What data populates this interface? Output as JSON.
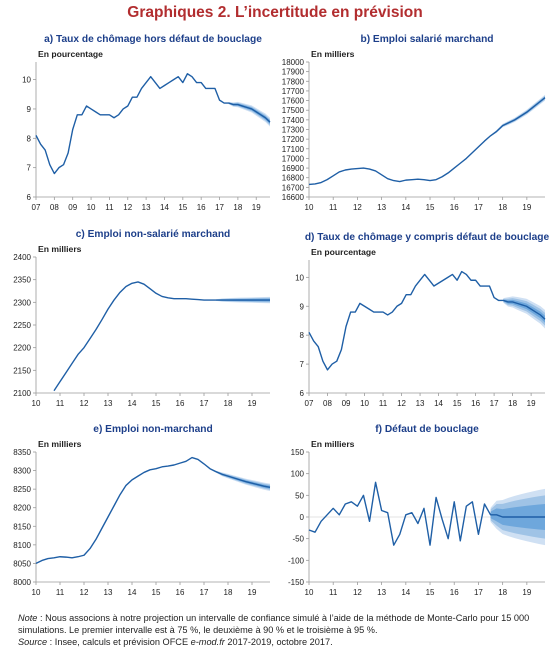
{
  "page": {
    "title": "Graphiques 2. L’incertitude en prévision",
    "note_label": "Note",
    "note_sep": " : ",
    "note_text": "Nous associons à notre projection un intervalle de confiance simulé à l’aide de la méthode de Monte-Carlo pour 15 000 simulations. Le premier intervalle est à 75 %, le deuxième à 90 % et le troisième à 95 %.",
    "source_label": "Source",
    "source_sep": " : ",
    "source_text_before": "Insee, calculs et prévision OFCE ",
    "source_text_italic": "e-mod.fr",
    "source_text_after": " 2017-2019, octobre 2017."
  },
  "colors": {
    "title": "#b22d2f",
    "panel_title": "#1d3f8a",
    "line": "#1f5fa6",
    "band95": "#cfe0f3",
    "band90": "#9fc3e6",
    "band75": "#6ea7dc",
    "axis": "#9a9a9a"
  },
  "chart_data": [
    {
      "id": "a",
      "type": "line",
      "title": "a) Taux de chômage hors défaut de bouclage",
      "unit": "En pourcentage",
      "x_start": 2007.0,
      "x_end": 2019.75,
      "xticks": [
        "07",
        "08",
        "09",
        "10",
        "11",
        "12",
        "13",
        "14",
        "15",
        "16",
        "17",
        "18",
        "19"
      ],
      "ylim": [
        6,
        10.6
      ],
      "yticks": [
        6,
        7,
        8,
        9,
        10
      ],
      "forecast_start": 2017.5,
      "bands": {
        "w75": 0.06,
        "w90": 0.1,
        "w95": 0.15
      },
      "x": [
        2007.0,
        2007.25,
        2007.5,
        2007.75,
        2008.0,
        2008.25,
        2008.5,
        2008.75,
        2009.0,
        2009.25,
        2009.5,
        2009.75,
        2010.0,
        2010.25,
        2010.5,
        2010.75,
        2011.0,
        2011.25,
        2011.5,
        2011.75,
        2012.0,
        2012.25,
        2012.5,
        2012.75,
        2013.0,
        2013.25,
        2013.5,
        2013.75,
        2014.0,
        2014.25,
        2014.5,
        2014.75,
        2015.0,
        2015.25,
        2015.5,
        2015.75,
        2016.0,
        2016.25,
        2016.5,
        2016.75,
        2017.0,
        2017.25,
        2017.5,
        2017.75,
        2018.0,
        2018.25,
        2018.5,
        2018.75,
        2019.0,
        2019.25,
        2019.5,
        2019.75
      ],
      "y": [
        8.1,
        7.8,
        7.6,
        7.1,
        6.8,
        7.0,
        7.1,
        7.5,
        8.3,
        8.8,
        8.8,
        9.1,
        9.0,
        8.9,
        8.8,
        8.8,
        8.8,
        8.7,
        8.8,
        9.0,
        9.1,
        9.4,
        9.4,
        9.7,
        9.9,
        10.1,
        9.9,
        9.7,
        9.8,
        9.9,
        10.0,
        10.1,
        9.9,
        10.2,
        10.1,
        9.9,
        9.9,
        9.7,
        9.7,
        9.7,
        9.3,
        9.2,
        9.2,
        9.15,
        9.15,
        9.1,
        9.05,
        9.0,
        8.9,
        8.8,
        8.7,
        8.55
      ]
    },
    {
      "id": "b",
      "type": "line",
      "title": "b) Emploi salarié marchand",
      "unit": "En milliers",
      "x_start": 2010.0,
      "x_end": 2019.75,
      "xticks": [
        "10",
        "11",
        "12",
        "13",
        "14",
        "15",
        "16",
        "17",
        "18",
        "19"
      ],
      "ylim": [
        16600,
        18000
      ],
      "yticks": [
        16600,
        16700,
        16800,
        16900,
        17000,
        17100,
        17200,
        17300,
        17400,
        17500,
        17600,
        17700,
        17800,
        17900,
        18000
      ],
      "forecast_start": 2017.5,
      "bands": {
        "w75": 10,
        "w90": 20,
        "w95": 30
      },
      "x": [
        2010.0,
        2010.25,
        2010.5,
        2010.75,
        2011.0,
        2011.25,
        2011.5,
        2011.75,
        2012.0,
        2012.25,
        2012.5,
        2012.75,
        2013.0,
        2013.25,
        2013.5,
        2013.75,
        2014.0,
        2014.25,
        2014.5,
        2014.75,
        2015.0,
        2015.25,
        2015.5,
        2015.75,
        2016.0,
        2016.25,
        2016.5,
        2016.75,
        2017.0,
        2017.25,
        2017.5,
        2017.75,
        2018.0,
        2018.25,
        2018.5,
        2018.75,
        2019.0,
        2019.25,
        2019.5,
        2019.75
      ],
      "y": [
        16730,
        16735,
        16750,
        16780,
        16820,
        16860,
        16880,
        16890,
        16895,
        16900,
        16890,
        16870,
        16830,
        16790,
        16770,
        16760,
        16775,
        16780,
        16785,
        16780,
        16770,
        16780,
        16810,
        16850,
        16900,
        16950,
        17000,
        17060,
        17120,
        17180,
        17235,
        17280,
        17340,
        17370,
        17400,
        17440,
        17480,
        17530,
        17580,
        17630
      ]
    },
    {
      "id": "c",
      "type": "line",
      "title": "c) Emploi non-salarié marchand",
      "unit": "En milliers",
      "x_start": 2010.0,
      "x_end": 2019.75,
      "xticks": [
        "10",
        "11",
        "12",
        "13",
        "14",
        "15",
        "16",
        "17",
        "18",
        "19"
      ],
      "ylim": [
        2100,
        2400
      ],
      "yticks": [
        2100,
        2150,
        2200,
        2250,
        2300,
        2350,
        2400
      ],
      "forecast_start": 2017.5,
      "bands": {
        "w75": 3,
        "w90": 5,
        "w95": 7
      },
      "x": [
        2010.75,
        2011.0,
        2011.25,
        2011.5,
        2011.75,
        2012.0,
        2012.25,
        2012.5,
        2012.75,
        2013.0,
        2013.25,
        2013.5,
        2013.75,
        2014.0,
        2014.25,
        2014.5,
        2014.75,
        2015.0,
        2015.25,
        2015.5,
        2015.75,
        2016.0,
        2016.25,
        2016.5,
        2016.75,
        2017.0,
        2017.25,
        2017.5,
        2017.75,
        2018.0,
        2018.25,
        2018.5,
        2018.75,
        2019.0,
        2019.25,
        2019.5,
        2019.75
      ],
      "y": [
        2105,
        2125,
        2145,
        2165,
        2185,
        2200,
        2220,
        2240,
        2262,
        2285,
        2305,
        2322,
        2335,
        2342,
        2345,
        2340,
        2330,
        2320,
        2313,
        2310,
        2308,
        2308,
        2308,
        2307,
        2306,
        2305,
        2305,
        2305,
        2305,
        2305,
        2305,
        2305,
        2305,
        2305,
        2305,
        2305,
        2305
      ]
    },
    {
      "id": "d",
      "type": "line",
      "title": "d) Taux de chômage y compris défaut de bouclage",
      "unit": "En pourcentage",
      "x_start": 2007.0,
      "x_end": 2019.75,
      "xticks": [
        "07",
        "08",
        "09",
        "10",
        "11",
        "12",
        "13",
        "14",
        "15",
        "16",
        "17",
        "18",
        "19"
      ],
      "ylim": [
        6,
        10.6
      ],
      "yticks": [
        6,
        7,
        8,
        9,
        10
      ],
      "forecast_start": 2017.5,
      "bands": {
        "w75": 0.12,
        "w90": 0.22,
        "w95": 0.32
      },
      "x": [
        2007.0,
        2007.25,
        2007.5,
        2007.75,
        2008.0,
        2008.25,
        2008.5,
        2008.75,
        2009.0,
        2009.25,
        2009.5,
        2009.75,
        2010.0,
        2010.25,
        2010.5,
        2010.75,
        2011.0,
        2011.25,
        2011.5,
        2011.75,
        2012.0,
        2012.25,
        2012.5,
        2012.75,
        2013.0,
        2013.25,
        2013.5,
        2013.75,
        2014.0,
        2014.25,
        2014.5,
        2014.75,
        2015.0,
        2015.25,
        2015.5,
        2015.75,
        2016.0,
        2016.25,
        2016.5,
        2016.75,
        2017.0,
        2017.25,
        2017.5,
        2017.75,
        2018.0,
        2018.25,
        2018.5,
        2018.75,
        2019.0,
        2019.25,
        2019.5,
        2019.75
      ],
      "y": [
        8.1,
        7.8,
        7.6,
        7.1,
        6.8,
        7.0,
        7.1,
        7.5,
        8.3,
        8.8,
        8.8,
        9.1,
        9.0,
        8.9,
        8.8,
        8.8,
        8.8,
        8.7,
        8.8,
        9.0,
        9.1,
        9.4,
        9.4,
        9.7,
        9.9,
        10.1,
        9.9,
        9.7,
        9.8,
        9.9,
        10.0,
        10.1,
        9.9,
        10.2,
        10.1,
        9.9,
        9.9,
        9.7,
        9.7,
        9.7,
        9.3,
        9.2,
        9.2,
        9.15,
        9.15,
        9.1,
        9.05,
        9.0,
        8.9,
        8.8,
        8.7,
        8.55
      ]
    },
    {
      "id": "e",
      "type": "line",
      "title": "e) Emploi non-marchand",
      "unit": "En milliers",
      "x_start": 2010.0,
      "x_end": 2019.75,
      "xticks": [
        "10",
        "11",
        "12",
        "13",
        "14",
        "15",
        "16",
        "17",
        "18",
        "19"
      ],
      "ylim": [
        8000,
        8350
      ],
      "yticks": [
        8000,
        8050,
        8100,
        8150,
        8200,
        8250,
        8300,
        8350
      ],
      "forecast_start": 2017.5,
      "bands": {
        "w75": 4,
        "w90": 7,
        "w95": 10
      },
      "x": [
        2010.0,
        2010.25,
        2010.5,
        2010.75,
        2011.0,
        2011.25,
        2011.5,
        2011.75,
        2012.0,
        2012.25,
        2012.5,
        2012.75,
        2013.0,
        2013.25,
        2013.5,
        2013.75,
        2014.0,
        2014.25,
        2014.5,
        2014.75,
        2015.0,
        2015.25,
        2015.5,
        2015.75,
        2016.0,
        2016.25,
        2016.5,
        2016.75,
        2017.0,
        2017.25,
        2017.5,
        2017.75,
        2018.0,
        2018.25,
        2018.5,
        2018.75,
        2019.0,
        2019.25,
        2019.5,
        2019.75
      ],
      "y": [
        8050,
        8058,
        8063,
        8065,
        8068,
        8067,
        8065,
        8068,
        8072,
        8090,
        8115,
        8145,
        8175,
        8205,
        8235,
        8260,
        8275,
        8285,
        8295,
        8302,
        8305,
        8310,
        8312,
        8315,
        8320,
        8325,
        8335,
        8330,
        8318,
        8305,
        8297,
        8290,
        8285,
        8280,
        8275,
        8270,
        8266,
        8262,
        8258,
        8255
      ]
    },
    {
      "id": "f",
      "type": "line",
      "title": "f) Défaut de bouclage",
      "unit": "En milliers",
      "x_start": 2010.0,
      "x_end": 2019.75,
      "xticks": [
        "10",
        "11",
        "12",
        "13",
        "14",
        "15",
        "16",
        "17",
        "18",
        "19"
      ],
      "ylim": [
        -150,
        150
      ],
      "yticks": [
        -150,
        -100,
        -50,
        0,
        50,
        100,
        150
      ],
      "forecast_start": 2017.5,
      "bands": {
        "w75": 30,
        "w90": 50,
        "w95": 65
      },
      "x": [
        2010.0,
        2010.25,
        2010.5,
        2010.75,
        2011.0,
        2011.25,
        2011.5,
        2011.75,
        2012.0,
        2012.25,
        2012.5,
        2012.75,
        2013.0,
        2013.25,
        2013.5,
        2013.75,
        2014.0,
        2014.25,
        2014.5,
        2014.75,
        2015.0,
        2015.25,
        2015.5,
        2015.75,
        2016.0,
        2016.25,
        2016.5,
        2016.75,
        2017.0,
        2017.25,
        2017.5,
        2017.75,
        2018.0,
        2018.25,
        2018.5,
        2018.75,
        2019.0,
        2019.25,
        2019.5,
        2019.75
      ],
      "y": [
        -30,
        -35,
        -10,
        5,
        20,
        5,
        30,
        35,
        25,
        50,
        -10,
        80,
        15,
        10,
        -65,
        -40,
        5,
        10,
        -15,
        20,
        -65,
        45,
        -5,
        -50,
        35,
        -55,
        25,
        35,
        -40,
        30,
        5,
        5,
        0,
        0,
        0,
        0,
        0,
        0,
        0,
        0
      ]
    }
  ]
}
